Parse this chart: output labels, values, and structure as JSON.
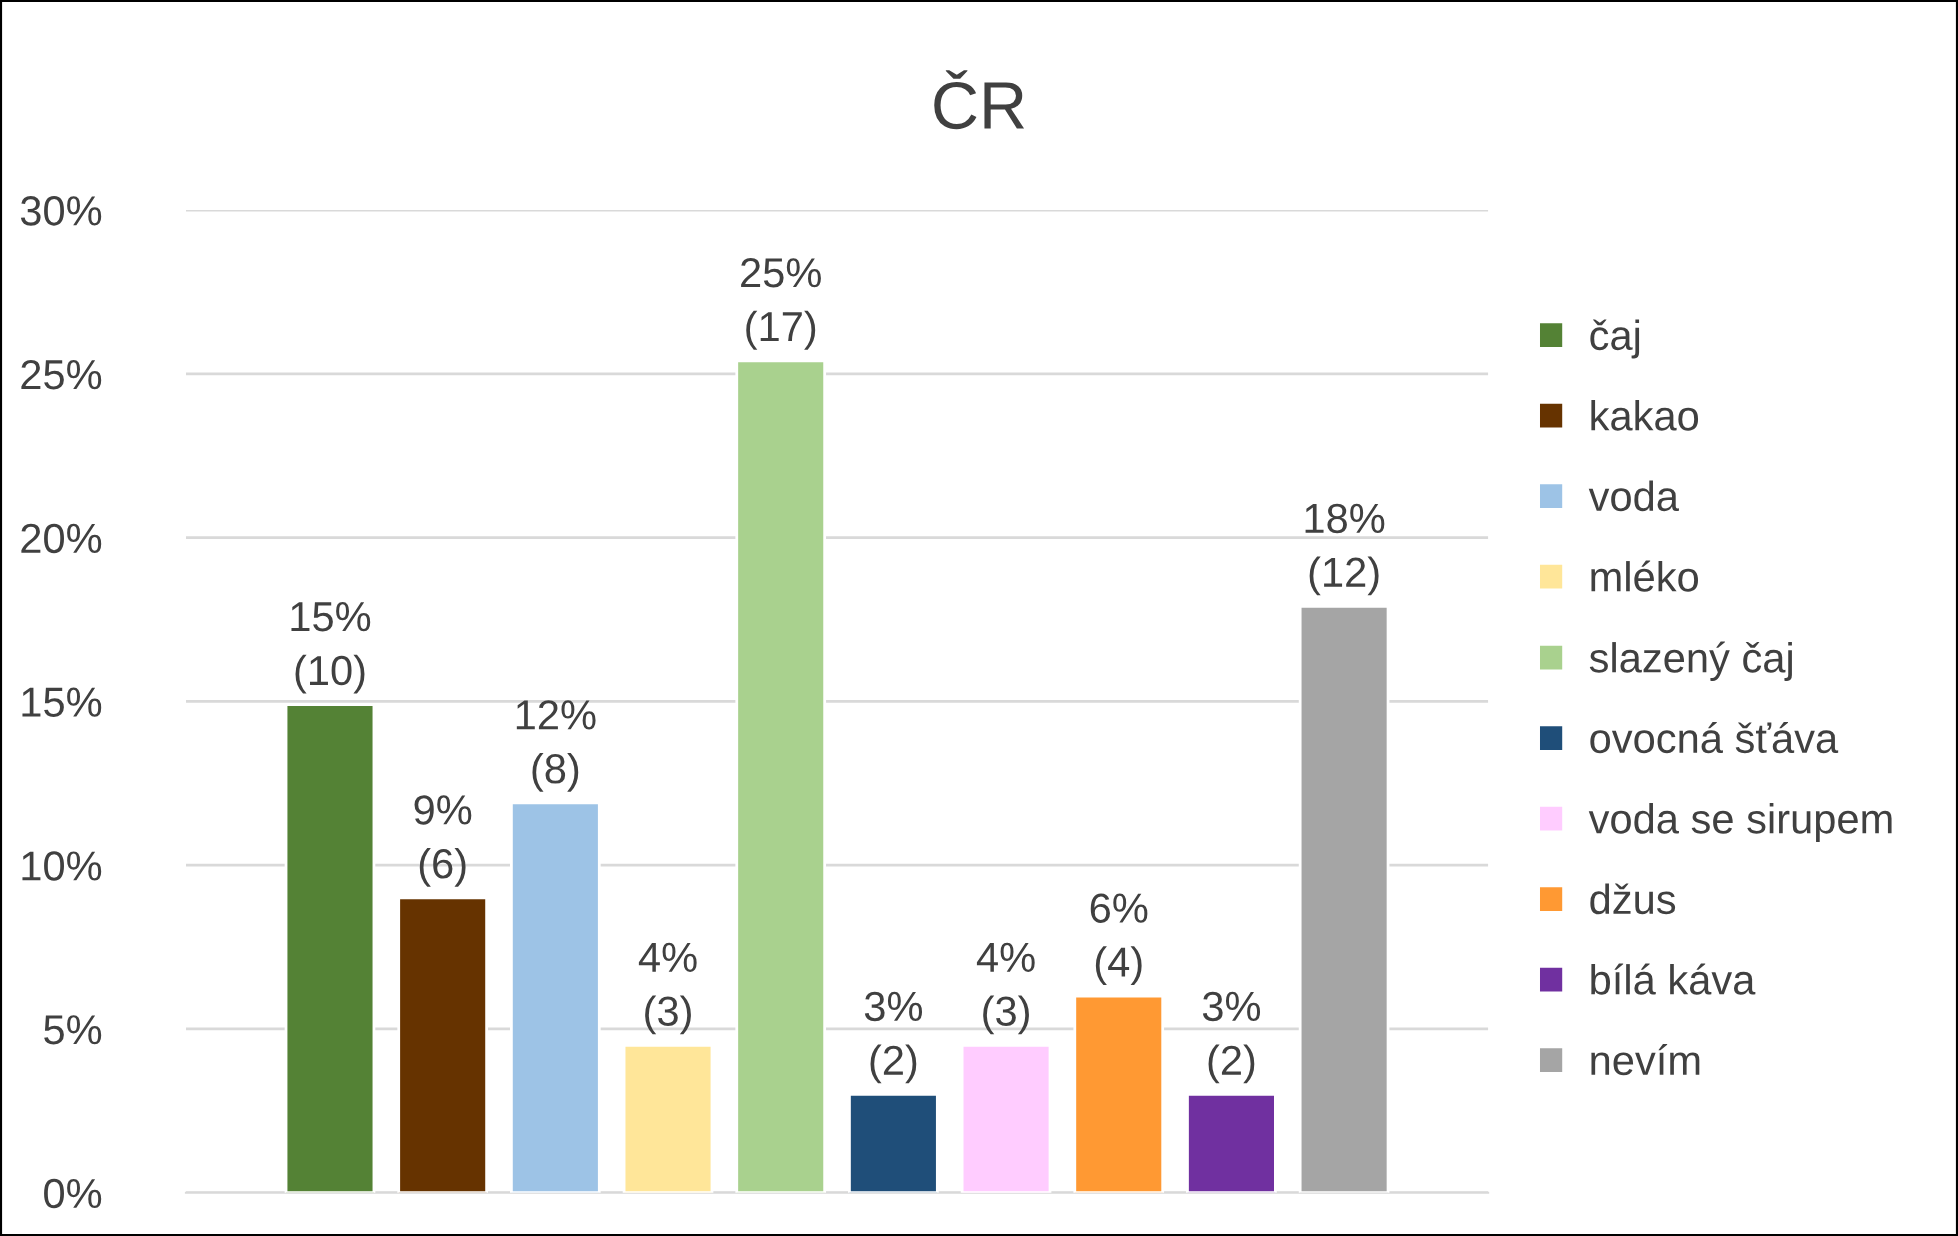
{
  "chart_data": {
    "type": "bar",
    "title": "ČR",
    "categories": [
      null
    ],
    "series": [
      {
        "name": "čaj",
        "color": "#548235",
        "values": [
          14.9
        ],
        "value_labels": [
          "15%\n(10)"
        ]
      },
      {
        "name": "kakao",
        "color": "#663300",
        "values": [
          9.0
        ],
        "value_labels": [
          "9%\n(6)"
        ]
      },
      {
        "name": "voda",
        "color": "#9dc3e6",
        "values": [
          11.9
        ],
        "value_labels": [
          "12%\n(8)"
        ]
      },
      {
        "name": "mléko",
        "color": "#ffe699",
        "values": [
          4.5
        ],
        "value_labels": [
          "4%\n(3)"
        ]
      },
      {
        "name": "slazený čaj",
        "color": "#a9d18e",
        "values": [
          25.4
        ],
        "value_labels": [
          "25%\n(17)"
        ]
      },
      {
        "name": "ovocná šťáva",
        "color": "#1f4e79",
        "values": [
          3.0
        ],
        "value_labels": [
          "3%\n(2)"
        ]
      },
      {
        "name": "voda se sirupem",
        "color": "#ffccff",
        "values": [
          4.5
        ],
        "value_labels": [
          "4%\n(3)"
        ]
      },
      {
        "name": "džus",
        "color": "#ff9933",
        "values": [
          6.0
        ],
        "value_labels": [
          "6%\n(4)"
        ]
      },
      {
        "name": "bílá káva",
        "color": "#7030a0",
        "values": [
          3.0
        ],
        "value_labels": [
          "3%\n(2)"
        ]
      },
      {
        "name": "nevím",
        "color": "#a5a5a5",
        "values": [
          17.9
        ],
        "value_labels": [
          "18%\n(12)"
        ]
      }
    ],
    "ylim": [
      0,
      30
    ],
    "yticks": [
      {
        "value": 0,
        "label": "0%"
      },
      {
        "value": 5,
        "label": "5%"
      },
      {
        "value": 10,
        "label": "10%"
      },
      {
        "value": 15,
        "label": "15%"
      },
      {
        "value": 20,
        "label": "20%"
      },
      {
        "value": 25,
        "label": "25%"
      },
      {
        "value": 30,
        "label": "30%"
      }
    ],
    "grid": "y",
    "legend": "right",
    "tick_labels": "y"
  }
}
